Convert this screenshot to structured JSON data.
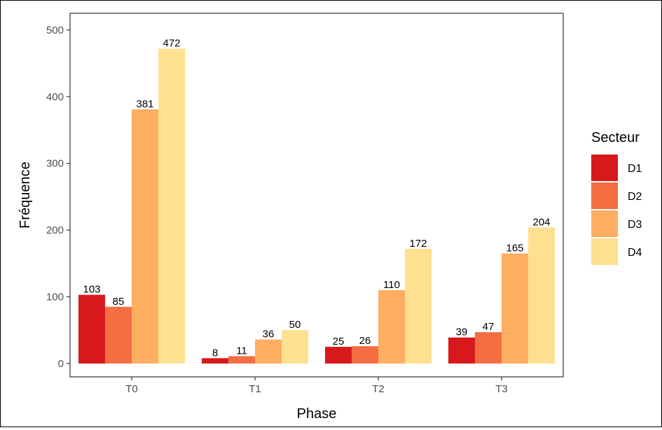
{
  "chart_data": {
    "type": "bar",
    "categories": [
      "T0",
      "T1",
      "T2",
      "T3"
    ],
    "series": [
      {
        "name": "D1",
        "color": "#d7191c",
        "values": [
          103,
          8,
          25,
          39
        ]
      },
      {
        "name": "D2",
        "color": "#f46d43",
        "values": [
          85,
          11,
          26,
          47
        ]
      },
      {
        "name": "D3",
        "color": "#fdae61",
        "values": [
          381,
          36,
          110,
          165
        ]
      },
      {
        "name": "D4",
        "color": "#fee090",
        "values": [
          472,
          50,
          172,
          204
        ]
      }
    ],
    "title": "",
    "xlabel": "Phase",
    "ylabel": "Fréquence",
    "ylim": [
      -20,
      525
    ],
    "yticks": [
      0,
      100,
      200,
      300,
      400,
      500
    ],
    "legend_title": "Secteur",
    "legend_position": "right",
    "grid": false,
    "data_labels": true
  }
}
